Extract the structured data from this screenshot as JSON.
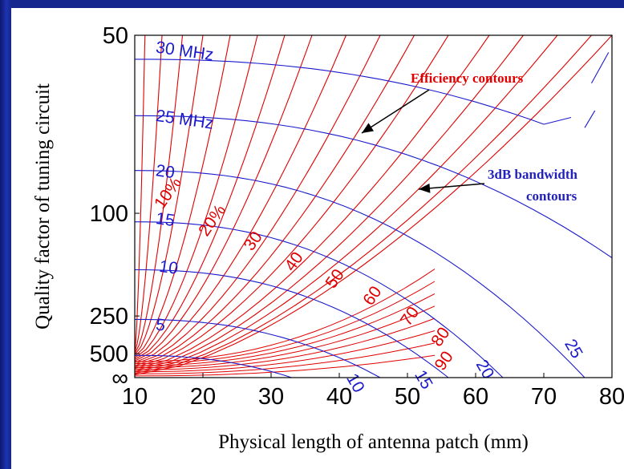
{
  "chart_data": {
    "type": "line",
    "title": "",
    "xlabel": "Physical length of antenna patch (mm)",
    "ylabel": "Quality factor of tuning circuit",
    "xlim": [
      10,
      80
    ],
    "x_ticks": [
      "10",
      "20",
      "30",
      "40",
      "50",
      "60",
      "70",
      "80"
    ],
    "y_ticks": [
      "50",
      "100",
      "250",
      "500",
      "∞"
    ],
    "grid": false,
    "efficiency_contours": {
      "name": "Efficiency contours",
      "color": "#e00000",
      "labels": [
        {
          "text": "10%",
          "x": 15.5,
          "y_frac": 0.47
        },
        {
          "text": "20%",
          "x": 22.0,
          "y_frac": 0.55
        },
        {
          "text": "30",
          "x": 28.0,
          "y_frac": 0.61
        },
        {
          "text": "40",
          "x": 34.0,
          "y_frac": 0.67
        },
        {
          "text": "50",
          "x": 40.0,
          "y_frac": 0.72
        },
        {
          "text": "60",
          "x": 45.5,
          "y_frac": 0.77
        },
        {
          "text": "70",
          "x": 51.0,
          "y_frac": 0.83
        },
        {
          "text": "80",
          "x": 55.5,
          "y_frac": 0.89
        },
        {
          "text": "90",
          "x": 56.0,
          "y_frac": 0.96
        }
      ]
    },
    "bandwidth_contours": {
      "name": "3dB bandwidth contours",
      "color": "#1a1acc",
      "labels": [
        {
          "text": "30 MHz",
          "x": 13.0,
          "y_frac": 0.05
        },
        {
          "text": "25 MHz",
          "x": 13.0,
          "y_frac": 0.25
        },
        {
          "text": "20",
          "x": 13.0,
          "y_frac": 0.41
        },
        {
          "text": "15",
          "x": 13.0,
          "y_frac": 0.55
        },
        {
          "text": "10",
          "x": 13.5,
          "y_frac": 0.69
        },
        {
          "text": "5",
          "x": 13.0,
          "y_frac": 0.86
        },
        {
          "text": "10",
          "x": 41.0,
          "y_frac": 1.0
        },
        {
          "text": "15",
          "x": 51.0,
          "y_frac": 0.99
        },
        {
          "text": "20",
          "x": 60.0,
          "y_frac": 0.96
        },
        {
          "text": "25",
          "x": 73.0,
          "y_frac": 0.9
        }
      ]
    },
    "annotations": [
      {
        "text": "Efficiency contours",
        "color": "#e00000"
      },
      {
        "text": "3dB bandwidth",
        "color": "#2222bb"
      },
      {
        "text": "contours",
        "color": "#2222bb"
      }
    ]
  }
}
